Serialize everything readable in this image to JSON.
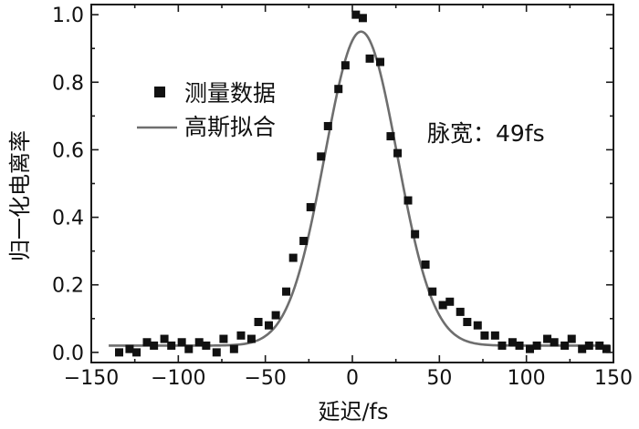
{
  "chart_data": {
    "type": "scatter",
    "xlabel": "延迟/fs",
    "ylabel": "归一化电离率",
    "xlim": [
      -150,
      150
    ],
    "ylim": [
      -0.03,
      1.03
    ],
    "x_ticks": [
      -150,
      -100,
      -50,
      0,
      50,
      100,
      150
    ],
    "x_tick_labels": [
      "−150",
      "−100",
      "−50",
      "0",
      "50",
      "100",
      "150"
    ],
    "y_ticks": [
      0.0,
      0.2,
      0.4,
      0.6,
      0.8,
      1.0
    ],
    "y_tick_labels": [
      "0.0",
      "0.2",
      "0.4",
      "0.6",
      "0.8",
      "1.0"
    ],
    "grid": false,
    "legend_position": "top-left",
    "series": [
      {
        "name": "测量数据",
        "kind": "scatter",
        "color": "#111111",
        "x": [
          -134,
          -128,
          -124,
          -118,
          -114,
          -108,
          -104,
          -98,
          -94,
          -88,
          -84,
          -78,
          -74,
          -68,
          -64,
          -58,
          -54,
          -48,
          -44,
          -38,
          -34,
          -28,
          -24,
          -18,
          -14,
          -8,
          -4,
          2,
          6,
          10,
          16,
          22,
          26,
          32,
          36,
          42,
          46,
          52,
          56,
          62,
          66,
          72,
          76,
          82,
          86,
          92,
          96,
          102,
          106,
          112,
          116,
          122,
          126,
          132,
          136,
          142,
          146
        ],
        "y": [
          0.0,
          0.01,
          0.0,
          0.03,
          0.02,
          0.04,
          0.02,
          0.03,
          0.01,
          0.03,
          0.02,
          0.0,
          0.04,
          0.01,
          0.05,
          0.04,
          0.09,
          0.08,
          0.11,
          0.18,
          0.28,
          0.33,
          0.43,
          0.58,
          0.67,
          0.78,
          0.85,
          1.0,
          0.99,
          0.87,
          0.86,
          0.64,
          0.59,
          0.45,
          0.35,
          0.26,
          0.18,
          0.14,
          0.15,
          0.12,
          0.09,
          0.08,
          0.05,
          0.05,
          0.02,
          0.03,
          0.02,
          0.01,
          0.02,
          0.04,
          0.03,
          0.02,
          0.04,
          0.01,
          0.02,
          0.02,
          0.01
        ]
      },
      {
        "name": "高斯拟合",
        "kind": "line",
        "color": "#6e6e6e",
        "model": "gaussian",
        "baseline": 0.02,
        "amplitude": 0.93,
        "center": 5,
        "fwhm": 49
      }
    ],
    "annotations": [
      {
        "text": "脉宽：49fs"
      }
    ]
  }
}
